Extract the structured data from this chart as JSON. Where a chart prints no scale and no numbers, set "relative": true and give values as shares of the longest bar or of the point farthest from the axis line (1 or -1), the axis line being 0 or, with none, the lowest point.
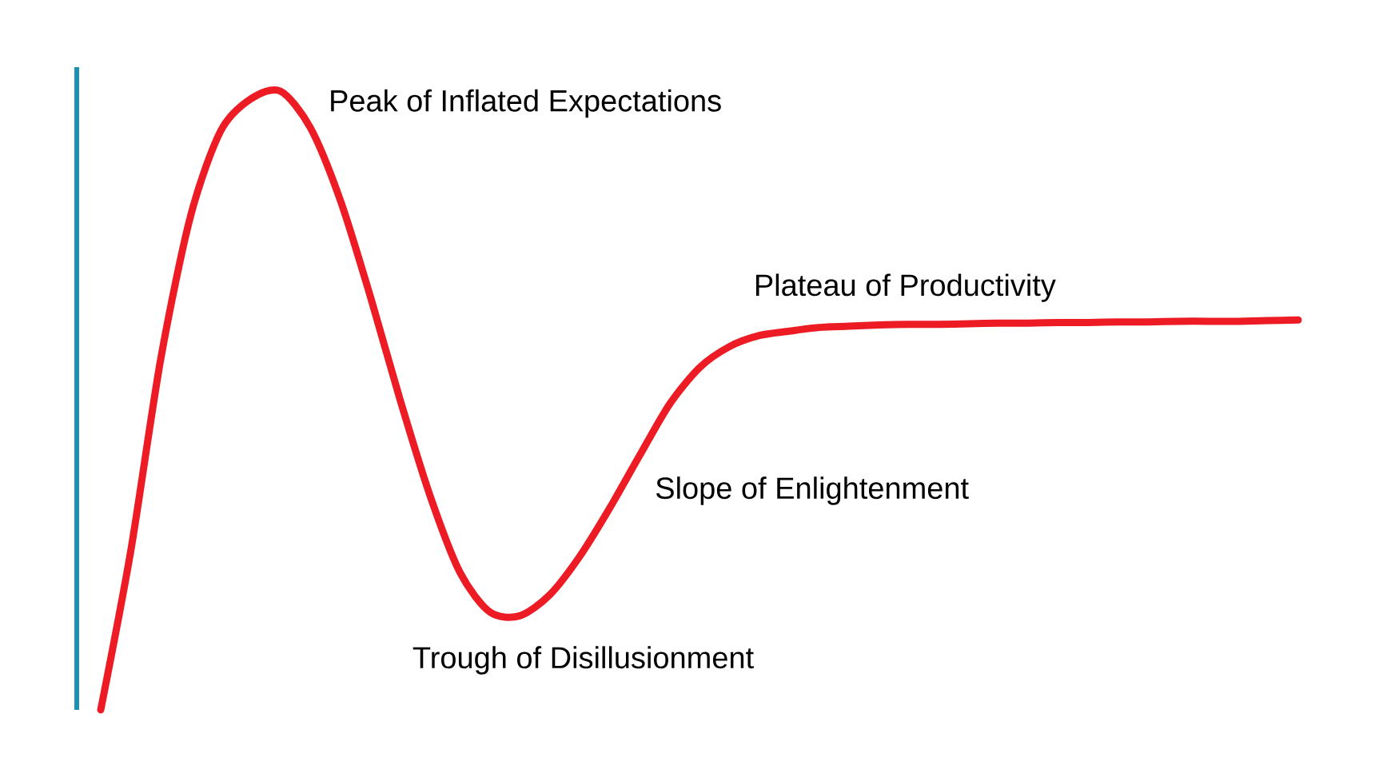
{
  "chart_data": {
    "type": "line",
    "relative": true,
    "categories": [
      null,
      null,
      null,
      null,
      null,
      null,
      null,
      null,
      null,
      null,
      null,
      null,
      null,
      null,
      null,
      null,
      null,
      null,
      null,
      null,
      null,
      null,
      null,
      null,
      null,
      null,
      null,
      null,
      null,
      null,
      null,
      null,
      null,
      null,
      null,
      null,
      null,
      null,
      null,
      null,
      null
    ],
    "values": [
      0,
      0.256,
      0.566,
      0.798,
      0.935,
      0.987,
      1.0,
      0.941,
      0.824,
      0.669,
      0.501,
      0.346,
      0.222,
      0.158,
      0.152,
      0.186,
      0.248,
      0.326,
      0.411,
      0.494,
      0.553,
      0.587,
      0.605,
      0.612,
      0.618,
      0.62,
      0.622,
      0.623,
      0.623,
      0.624,
      0.625,
      0.625,
      0.626,
      0.626,
      0.627,
      0.627,
      0.628,
      0.628,
      0.628,
      0.629,
      0.63
    ],
    "color": "#ed1c24",
    "annotations": [
      "Peak of Inflated Expectations",
      "Plateau of Productivity",
      "Slope of Enlightenment",
      "Trough of Disillusionment"
    ]
  }
}
